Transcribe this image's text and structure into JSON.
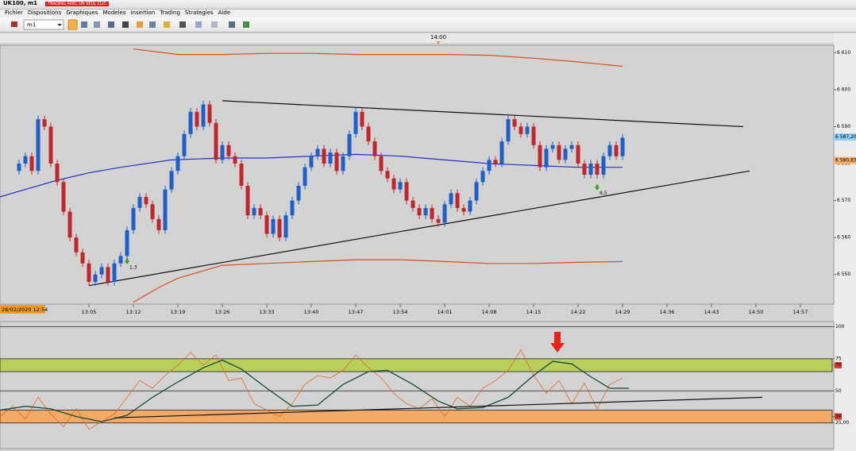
{
  "window": {
    "title": "UK100, m1",
    "badge": "TRADING AVEC UN SEUL CLIC",
    "menu": [
      "Fichier",
      "Dispositions",
      "Graphiques",
      "Modeles",
      "Insertion",
      "Trading",
      "Strategies",
      "Aide"
    ],
    "timeframe": "m1",
    "cursor_time": "14:00",
    "start_label": "28/02/2020 12:54"
  },
  "chart_data": [
    {
      "type": "candlestick",
      "x": [
        "12:54",
        "12:55",
        "12:56",
        "12:57",
        "12:58",
        "12:59",
        "13:00",
        "13:01",
        "13:02",
        "13:03",
        "13:04",
        "13:05",
        "13:06",
        "13:07",
        "13:08",
        "13:09",
        "13:10",
        "13:11",
        "13:12",
        "13:13",
        "13:14",
        "13:15",
        "13:16",
        "13:17",
        "13:18",
        "13:19",
        "13:20",
        "13:21",
        "13:22",
        "13:23",
        "13:24",
        "13:25",
        "13:26",
        "13:27",
        "13:28",
        "13:29",
        "13:30",
        "13:31",
        "13:32",
        "13:33",
        "13:34",
        "13:35",
        "13:36",
        "13:37",
        "13:38",
        "13:39",
        "13:40",
        "13:41",
        "13:42",
        "13:43",
        "13:44",
        "13:45",
        "13:46",
        "13:47",
        "13:48",
        "13:49",
        "13:50",
        "13:51",
        "13:52",
        "13:53",
        "13:54",
        "13:55",
        "13:56",
        "13:57",
        "13:58",
        "13:59",
        "14:00",
        "14:01",
        "14:02",
        "14:03",
        "14:04",
        "14:05",
        "14:06",
        "14:07",
        "14:08",
        "14:09",
        "14:10",
        "14:11",
        "14:12",
        "14:13",
        "14:14",
        "14:15",
        "14:16",
        "14:17",
        "14:18",
        "14:19",
        "14:20",
        "14:21",
        "14:22",
        "14:23",
        "14:24",
        "14:25",
        "14:26",
        "14:27",
        "14:28",
        "14:29"
      ],
      "open": [
        6578,
        6580,
        6582,
        6578,
        6592,
        6590,
        6580,
        6575,
        6567,
        6560,
        6556,
        6553,
        6548,
        6550,
        6552,
        6548,
        6553,
        6555,
        6562,
        6568,
        6571,
        6569,
        6565,
        6562,
        6573,
        6578,
        6582,
        6588,
        6594,
        6590,
        6596,
        6591,
        6581,
        6585,
        6582,
        6580,
        6574,
        6566,
        6568,
        6566,
        6561,
        6565,
        6560,
        6566,
        6570,
        6574,
        6579,
        6582,
        6584,
        6580,
        6583,
        6578,
        6582,
        6588,
        6594,
        6590,
        6586,
        6582,
        6578,
        6576,
        6573,
        6575,
        6570,
        6568,
        6566,
        6568,
        6565,
        6564,
        6569,
        6572,
        6568,
        6567,
        6570,
        6575,
        6578,
        6581,
        6580,
        6586,
        6592,
        6590,
        6588,
        6590,
        6585,
        6579,
        6584,
        6585,
        6581,
        6584,
        6585,
        6580,
        6577,
        6580,
        6577,
        6582,
        6585,
        6582
      ],
      "high": [
        6581,
        6583,
        6583,
        6593,
        6593,
        6591,
        6581,
        6576,
        6568,
        6561,
        6557,
        6554,
        6551,
        6553,
        6553,
        6554,
        6556,
        6563,
        6569,
        6572,
        6572,
        6570,
        6566,
        6574,
        6579,
        6583,
        6589,
        6595,
        6595,
        6597,
        6597,
        6592,
        6586,
        6586,
        6583,
        6581,
        6575,
        6569,
        6569,
        6567,
        6566,
        6566,
        6567,
        6571,
        6575,
        6580,
        6583,
        6585,
        6585,
        6584,
        6584,
        6583,
        6589,
        6595,
        6595,
        6591,
        6587,
        6583,
        6579,
        6577,
        6576,
        6576,
        6571,
        6569,
        6569,
        6569,
        6566,
        6570,
        6573,
        6573,
        6569,
        6571,
        6576,
        6579,
        6582,
        6582,
        6587,
        6593,
        6593,
        6591,
        6591,
        6591,
        6586,
        6585,
        6586,
        6586,
        6585,
        6586,
        6586,
        6581,
        6581,
        6581,
        6583,
        6586,
        6586,
        6588
      ],
      "low": [
        6577,
        6579,
        6577,
        6577,
        6589,
        6579,
        6574,
        6566,
        6559,
        6555,
        6552,
        6547,
        6547,
        6549,
        6547,
        6547,
        6552,
        6554,
        6561,
        6567,
        6568,
        6564,
        6561,
        6561,
        6572,
        6577,
        6581,
        6587,
        6589,
        6589,
        6590,
        6580,
        6580,
        6581,
        6579,
        6573,
        6565,
        6565,
        6565,
        6560,
        6560,
        6559,
        6559,
        6565,
        6569,
        6573,
        6578,
        6581,
        6579,
        6579,
        6577,
        6577,
        6581,
        6587,
        6589,
        6585,
        6581,
        6577,
        6575,
        6572,
        6572,
        6569,
        6567,
        6565,
        6565,
        6564,
        6563,
        6563,
        6568,
        6567,
        6566,
        6566,
        6569,
        6574,
        6577,
        6579,
        6579,
        6585,
        6589,
        6587,
        6587,
        6584,
        6578,
        6578,
        6583,
        6580,
        6580,
        6583,
        6579,
        6576,
        6576,
        6576,
        6576,
        6581,
        6581,
        6581
      ],
      "close": [
        6580,
        6582,
        6578,
        6592,
        6590,
        6580,
        6575,
        6567,
        6560,
        6556,
        6553,
        6548,
        6550,
        6552,
        6548,
        6553,
        6555,
        6562,
        6568,
        6571,
        6569,
        6565,
        6562,
        6573,
        6578,
        6582,
        6588,
        6594,
        6590,
        6596,
        6591,
        6581,
        6585,
        6582,
        6580,
        6574,
        6566,
        6568,
        6566,
        6561,
        6565,
        6560,
        6566,
        6570,
        6574,
        6579,
        6582,
        6584,
        6580,
        6583,
        6578,
        6582,
        6588,
        6594,
        6590,
        6586,
        6582,
        6578,
        6576,
        6573,
        6575,
        6570,
        6568,
        6566,
        6568,
        6565,
        6564,
        6569,
        6572,
        6568,
        6567,
        6570,
        6575,
        6578,
        6581,
        6580,
        6586,
        6592,
        6590,
        6588,
        6590,
        6585,
        6579,
        6584,
        6585,
        6581,
        6584,
        6585,
        6580,
        6577,
        6580,
        6577,
        6582,
        6585,
        6582,
        6587
      ],
      "up_color": "#1f5fc8",
      "down_color": "#c0272d",
      "series": [
        {
          "color": "#2231c8",
          "x": [
            "12:51",
            "12:55",
            "13:00",
            "13:05",
            "13:10",
            "13:18",
            "13:26",
            "13:33",
            "13:40",
            "13:47",
            "13:54",
            "14:01",
            "14:08",
            "14:15",
            "14:22",
            "14:29"
          ],
          "values": [
            6571,
            6573,
            6575.5,
            6577.5,
            6579,
            6581,
            6581.5,
            6581.5,
            6582,
            6582.5,
            6582,
            6581,
            6580,
            6579.5,
            6579,
            6579
          ]
        },
        {
          "color": "#d4511a",
          "x": [
            "13:12",
            "13:19",
            "13:26",
            "13:33",
            "13:40",
            "13:47",
            "13:54",
            "14:01",
            "14:08",
            "14:15",
            "14:22",
            "14:29"
          ],
          "values": [
            6611,
            6609.5,
            6609.5,
            6609.8,
            6609.8,
            6609.5,
            6609.5,
            6609.5,
            6609.3,
            6608.5,
            6607.5,
            6606.3
          ]
        },
        {
          "color": "#d4511a",
          "x": [
            "13:12",
            "13:16",
            "13:19",
            "13:26",
            "13:33",
            "13:40",
            "13:47",
            "13:54",
            "14:01",
            "14:08",
            "14:15",
            "14:22",
            "14:29"
          ],
          "values": [
            6542.5,
            6546.5,
            6549,
            6552.5,
            6553,
            6553.5,
            6554,
            6554,
            6553.5,
            6553,
            6553,
            6553.3,
            6553.5
          ]
        }
      ],
      "trendlines": [
        {
          "color": "#111111",
          "x": [
            "13:26",
            "14:48"
          ],
          "values": [
            6597,
            6590
          ]
        },
        {
          "color": "#111111",
          "x": [
            "13:05",
            "14:49"
          ],
          "values": [
            6547,
            6578
          ]
        }
      ],
      "annotations": [
        {
          "text": "1,3",
          "x": "13:11",
          "y": 6553
        },
        {
          "text": "6,5",
          "x": "14:25",
          "y": 6573
        }
      ],
      "price_labels": [
        {
          "value": 6587.2,
          "label": "6 587,20",
          "color": "#8fd0f5"
        },
        {
          "value": 6580.83,
          "label": "6 580,83",
          "color": "#f5b06a"
        }
      ],
      "xlim": [
        "12:51",
        "15:02"
      ],
      "xticks": [
        "13:05",
        "13:12",
        "13:19",
        "13:26",
        "13:33",
        "13:40",
        "13:47",
        "13:54",
        "14:01",
        "14:08",
        "14:15",
        "14:22",
        "14:29",
        "14:36",
        "14:43",
        "14:50",
        "14:57"
      ],
      "ylim": [
        6542,
        6612
      ],
      "yticks": [
        {
          "value": 6550,
          "label": "6 550"
        },
        {
          "value": 6560,
          "label": "6 560"
        },
        {
          "value": 6570,
          "label": "6 570"
        },
        {
          "value": 6580,
          "label": "6 580"
        },
        {
          "value": 6590,
          "label": "6 590"
        },
        {
          "value": 6600,
          "label": "6 600"
        },
        {
          "value": 6610,
          "label": "6 610"
        }
      ]
    },
    {
      "type": "oscillator",
      "series": [
        {
          "color": "#e0692a",
          "x": [
            "12:51",
            "12:53",
            "12:55",
            "12:57",
            "12:59",
            "13:01",
            "13:03",
            "13:05",
            "13:07",
            "13:09",
            "13:11",
            "13:13",
            "13:15",
            "13:17",
            "13:19",
            "13:21",
            "13:23",
            "13:25",
            "13:27",
            "13:29",
            "13:31",
            "13:33",
            "13:35",
            "13:37",
            "13:39",
            "13:41",
            "13:43",
            "13:45",
            "13:47",
            "13:49",
            "13:51",
            "13:53",
            "13:55",
            "13:57",
            "13:59",
            "14:01",
            "14:03",
            "14:05",
            "14:07",
            "14:09",
            "14:11",
            "14:13",
            "14:15",
            "14:17",
            "14:19",
            "14:21",
            "14:23",
            "14:25",
            "14:27",
            "14:29"
          ],
          "values": [
            30,
            38,
            28,
            45,
            32,
            22,
            36,
            20,
            26,
            32,
            45,
            58,
            52,
            62,
            70,
            80,
            70,
            78,
            58,
            60,
            40,
            35,
            30,
            40,
            55,
            62,
            60,
            66,
            78,
            68,
            60,
            48,
            40,
            36,
            44,
            30,
            45,
            38,
            52,
            58,
            66,
            82,
            62,
            48,
            58,
            40,
            56,
            36,
            55,
            60
          ]
        },
        {
          "color": "#164a34",
          "x": [
            "12:51",
            "12:55",
            "12:59",
            "13:03",
            "13:07",
            "13:11",
            "13:15",
            "13:19",
            "13:23",
            "13:26",
            "13:29",
            "13:33",
            "13:37",
            "13:41",
            "13:45",
            "13:49",
            "13:52",
            "13:56",
            "14:00",
            "14:03",
            "14:07",
            "14:11",
            "14:15",
            "14:18",
            "14:21",
            "14:24",
            "14:27",
            "14:30"
          ],
          "values": [
            35,
            38,
            36,
            30,
            26,
            31,
            45,
            57,
            68,
            74,
            67,
            52,
            38,
            39,
            55,
            65,
            66,
            55,
            42,
            36,
            37,
            45,
            62,
            73,
            71,
            61,
            52,
            52
          ]
        }
      ],
      "trendlines": [
        {
          "color": "#111111",
          "x": [
            "13:09",
            "14:51"
          ],
          "values": [
            29,
            45
          ]
        }
      ],
      "zones": [
        {
          "range": [
            65,
            75
          ],
          "color": "#b8cf5c"
        },
        {
          "range": [
            25,
            35
          ],
          "color": "#f2aa66"
        }
      ],
      "levels": [
        100,
        50
      ],
      "highlighted_ticks": [
        70,
        30
      ],
      "xlim": [
        "12:51",
        "15:02"
      ],
      "ylim": [
        5,
        104
      ],
      "yticks": [
        100,
        75,
        70,
        50,
        30,
        {
          "value": 25,
          "label": "25,00"
        }
      ]
    }
  ]
}
